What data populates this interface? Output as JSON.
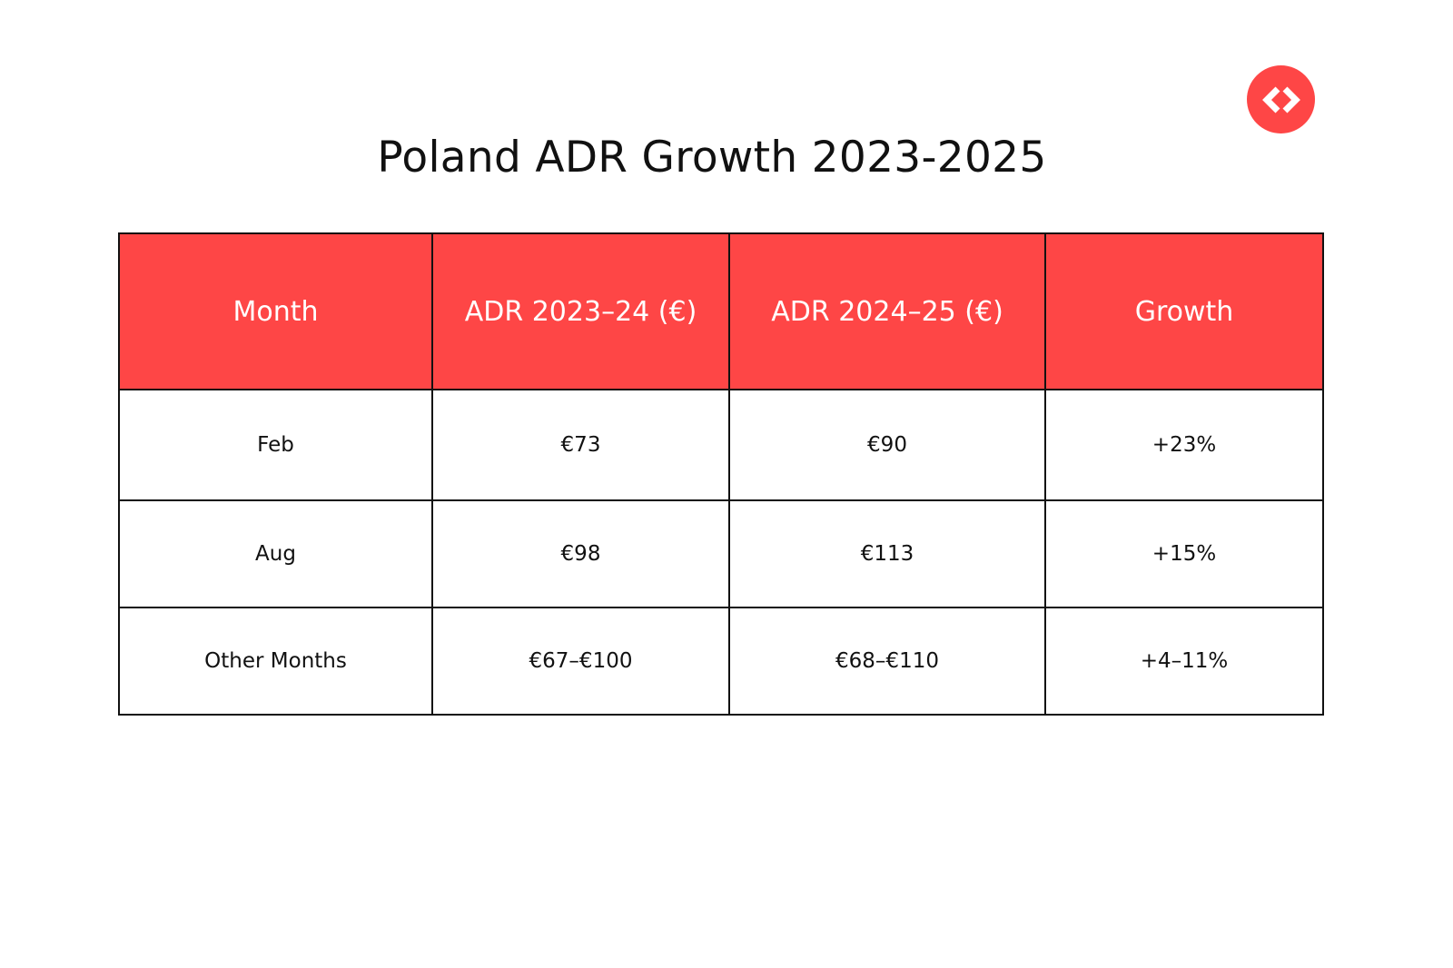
{
  "title": "Poland ADR Growth 2023-2025",
  "logo": {
    "icon": "code-brackets-icon",
    "color": "#fe4646"
  },
  "colors": {
    "header_bg": "#fe4646",
    "header_text": "#ffffff",
    "border": "#111111"
  },
  "chart_data": {
    "type": "table",
    "title": "Poland ADR Growth 2023-2025",
    "columns": [
      "Month",
      "ADR 2023–24 (€)",
      "ADR 2024–25 (€)",
      "Growth"
    ],
    "rows": [
      [
        "Feb",
        "€73",
        "€90",
        "+23%"
      ],
      [
        "Aug",
        "€98",
        "€113",
        "+15%"
      ],
      [
        "Other Months",
        "€67–€100",
        "€68–€110",
        "+4–11%"
      ]
    ]
  }
}
